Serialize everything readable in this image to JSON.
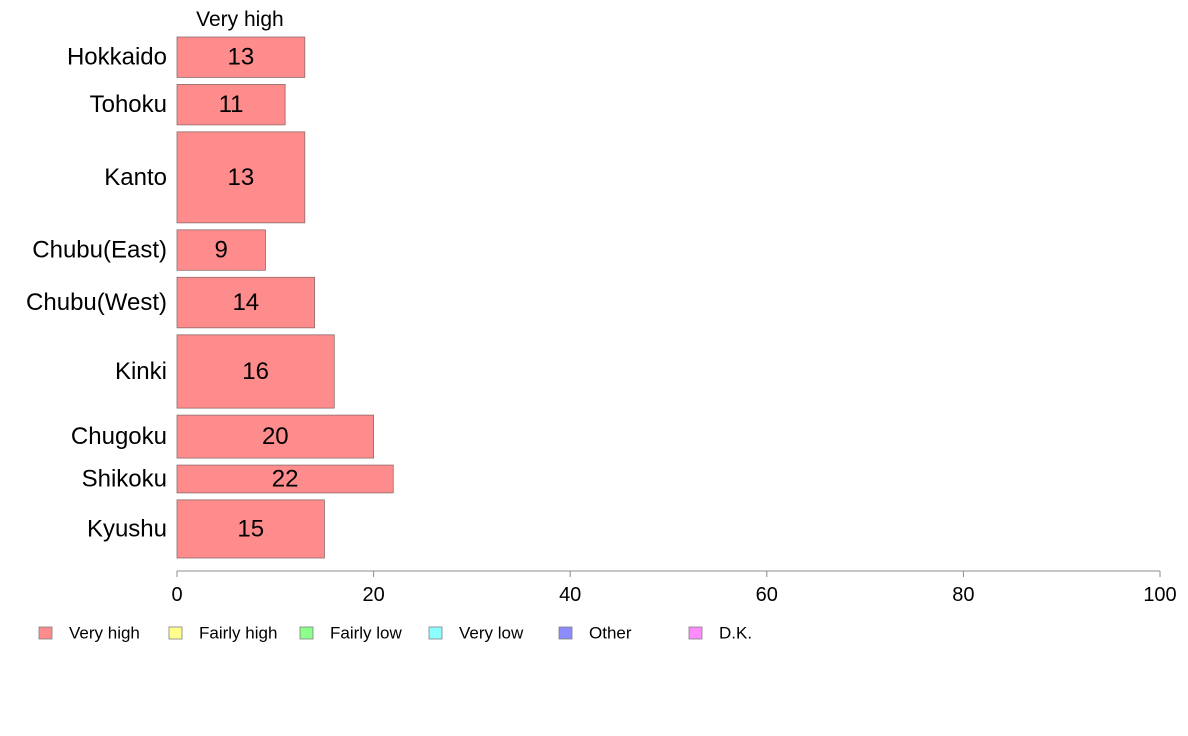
{
  "chart_data": {
    "type": "bar",
    "orientation": "horizontal",
    "column_header": "Very high",
    "categories": [
      "Hokkaido",
      "Tohoku",
      "Kanto",
      "Chubu(East)",
      "Chubu(West)",
      "Kinki",
      "Chugoku",
      "Shikoku",
      "Kyushu"
    ],
    "relative_bar_thickness": [
      0.8,
      0.8,
      1.8,
      0.8,
      1.0,
      1.45,
      0.85,
      0.55,
      1.15
    ],
    "series": [
      {
        "name": "Very high",
        "color": "#ff8c8c",
        "values": [
          13,
          11,
          13,
          9,
          14,
          16,
          20,
          22,
          15
        ]
      }
    ],
    "data_labels": [
      "13",
      "11",
      "13",
      "9",
      "14",
      "16",
      "20",
      "22",
      "15"
    ],
    "xlim": [
      0,
      100
    ],
    "xticks": [
      0,
      20,
      40,
      60,
      80,
      100
    ],
    "xlabel": "",
    "ylabel": "",
    "grid": false,
    "legend": {
      "position": "bottom-left",
      "entries": [
        {
          "label": "Very high",
          "color": "#ff8c8c"
        },
        {
          "label": "Fairly high",
          "color": "#ffff8c"
        },
        {
          "label": "Fairly low",
          "color": "#8cff8c"
        },
        {
          "label": "Very low",
          "color": "#8cffff"
        },
        {
          "label": "Other",
          "color": "#8c8cff"
        },
        {
          "label": "D.K.",
          "color": "#ff8cff"
        }
      ]
    }
  }
}
